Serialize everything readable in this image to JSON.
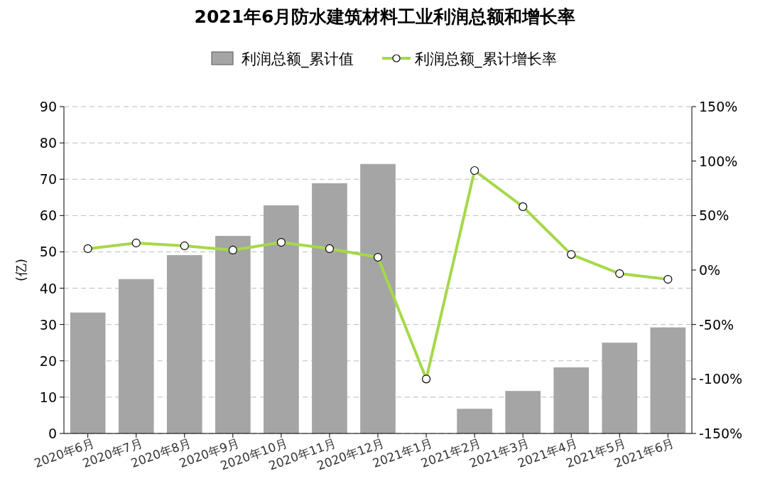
{
  "chart_data": {
    "type": "bar",
    "title": "2021年6月防水建筑材料工业利润总额和增长率",
    "ylabel": "(亿)",
    "categories": [
      "2020年6月",
      "2020年7月",
      "2020年8月",
      "2020年9月",
      "2020年10月",
      "2020年11月",
      "2020年12月",
      "2021年1月",
      "2021年2月",
      "2021年3月",
      "2021年4月",
      "2021年5月",
      "2021年6月"
    ],
    "series": [
      {
        "name": "利润总额_累计值",
        "color": "#a5a5a5",
        "values": [
          33.3,
          42.5,
          49.1,
          54.4,
          62.8,
          68.9,
          74.2,
          null,
          6.8,
          11.7,
          18.2,
          25.0,
          29.2
        ]
      },
      {
        "name": "利润总额_累计增长率",
        "type": "line",
        "axis": "y2",
        "color": "#a6d84a",
        "marker": "circle",
        "values": [
          19.6,
          24.8,
          22.2,
          18.3,
          25.4,
          19.6,
          11.7,
          -100,
          91.3,
          58.1,
          14.3,
          -3.3,
          -8.5
        ]
      }
    ],
    "ylim": [
      0,
      90
    ],
    "yticks": [
      0,
      10,
      20,
      30,
      40,
      50,
      60,
      70,
      80,
      90
    ],
    "y2lim": [
      -150,
      150
    ],
    "y2ticks": [
      {
        "value": -150,
        "label": "-150%"
      },
      {
        "value": -100,
        "label": "-100%"
      },
      {
        "value": -50,
        "label": "-50%"
      },
      {
        "value": 0,
        "label": "0%"
      },
      {
        "value": 50,
        "label": "50%"
      },
      {
        "value": 100,
        "label": "100%"
      },
      {
        "value": 150,
        "label": "150%"
      }
    ],
    "grid": "y",
    "legend": "top"
  }
}
